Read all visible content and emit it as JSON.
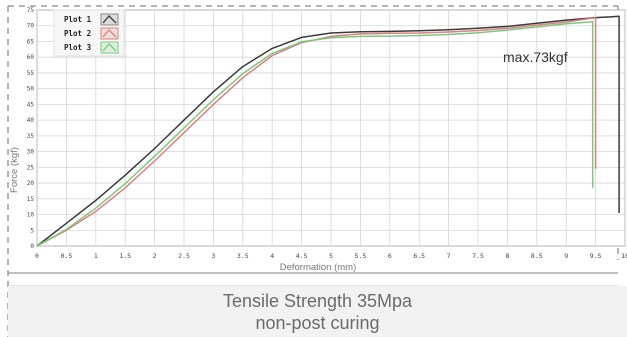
{
  "chart_data": {
    "type": "line",
    "xlabel": "Deformation (mm)",
    "ylabel": "Force (kgf)",
    "xlim": [
      0,
      10
    ],
    "ylim": [
      0,
      75
    ],
    "x_ticks": [
      "0",
      "0.5",
      "1",
      "1.5",
      "2",
      "2.5",
      "3",
      "3.5",
      "4",
      "4.5",
      "5",
      "5.5",
      "6",
      "6.5",
      "7",
      "7.5",
      "8",
      "8.5",
      "9",
      "9.5",
      "10"
    ],
    "y_ticks": [
      "0",
      "5",
      "10",
      "15",
      "20",
      "25",
      "30",
      "35",
      "40",
      "45",
      "50",
      "55",
      "60",
      "65",
      "70",
      "75"
    ],
    "grid": true,
    "legend_position": "top-left",
    "annotation": "max.73kgf",
    "series": [
      {
        "name": "Plot 1",
        "color": "#3a3a3a",
        "points": [
          [
            0,
            0
          ],
          [
            0.5,
            7.2
          ],
          [
            1,
            14.5
          ],
          [
            1.5,
            22.5
          ],
          [
            2,
            31
          ],
          [
            2.5,
            40
          ],
          [
            3,
            49
          ],
          [
            3.5,
            57
          ],
          [
            4,
            62.8
          ],
          [
            4.5,
            66.3
          ],
          [
            5,
            67.7
          ],
          [
            5.5,
            68.1
          ],
          [
            6,
            68.2
          ],
          [
            6.5,
            68.4
          ],
          [
            7,
            68.7
          ],
          [
            7.5,
            69.2
          ],
          [
            8,
            69.8
          ],
          [
            8.5,
            70.8
          ],
          [
            9,
            71.8
          ],
          [
            9.5,
            72.6
          ],
          [
            9.75,
            72.8
          ],
          [
            9.9,
            73
          ],
          [
            9.9,
            10.5
          ]
        ]
      },
      {
        "name": "Plot 2",
        "color": "#d98080",
        "points": [
          [
            0,
            0
          ],
          [
            0.5,
            5
          ],
          [
            1,
            11
          ],
          [
            1.5,
            18.5
          ],
          [
            2,
            27
          ],
          [
            2.5,
            36
          ],
          [
            3,
            45
          ],
          [
            3.5,
            53.5
          ],
          [
            4,
            60.5
          ],
          [
            4.5,
            64.6
          ],
          [
            5,
            66.6
          ],
          [
            5.5,
            67.4
          ],
          [
            6,
            67.6
          ],
          [
            6.5,
            67.7
          ],
          [
            7,
            68
          ],
          [
            7.5,
            68.5
          ],
          [
            8,
            69.2
          ],
          [
            8.5,
            70.2
          ],
          [
            9,
            71.2
          ],
          [
            9.4,
            72.3
          ],
          [
            9.5,
            72.5
          ],
          [
            9.5,
            24.5
          ]
        ]
      },
      {
        "name": "Plot 3",
        "color": "#7ec87e",
        "points": [
          [
            0,
            0
          ],
          [
            0.5,
            5.3
          ],
          [
            1,
            12
          ],
          [
            1.5,
            19.8
          ],
          [
            2,
            28.5
          ],
          [
            2.5,
            37.5
          ],
          [
            3,
            46.5
          ],
          [
            3.5,
            54.8
          ],
          [
            4,
            61.2
          ],
          [
            4.5,
            64.9
          ],
          [
            5,
            66.2
          ],
          [
            5.5,
            66.6
          ],
          [
            6,
            66.7
          ],
          [
            6.5,
            66.9
          ],
          [
            7,
            67.2
          ],
          [
            7.5,
            67.8
          ],
          [
            8,
            68.6
          ],
          [
            8.5,
            69.6
          ],
          [
            9,
            70.6
          ],
          [
            9.4,
            71.2
          ],
          [
            9.45,
            71.3
          ],
          [
            9.45,
            18.5
          ]
        ]
      }
    ]
  },
  "caption": {
    "line1": "Tensile Strength 35Mpa",
    "line2": "non-post curing"
  }
}
